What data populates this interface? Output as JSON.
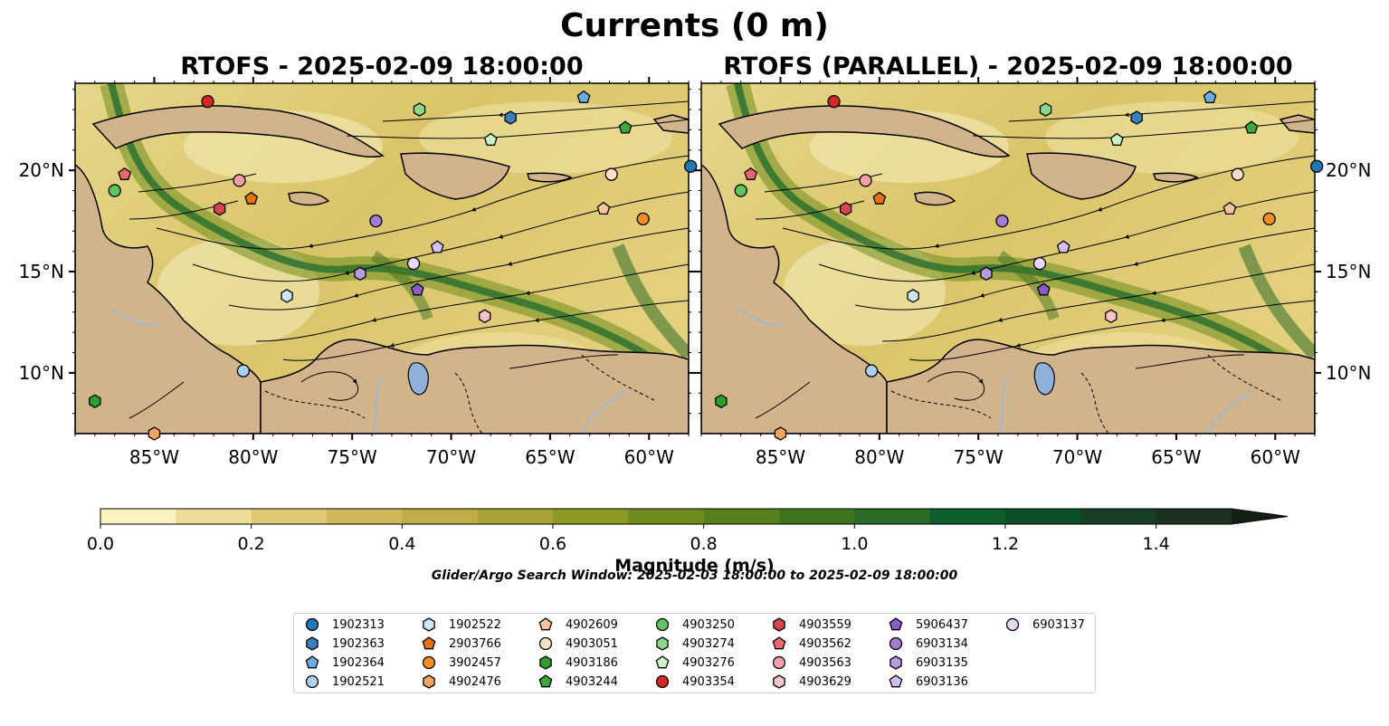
{
  "suptitle": "Currents (0 m)",
  "panels": [
    {
      "title": "RTOFS - 2025-02-09 18:00:00"
    },
    {
      "title": "RTOFS (PARALLEL) - 2025-02-09 18:00:00"
    }
  ],
  "map": {
    "lon_ticks": [
      "85°W",
      "80°W",
      "75°W",
      "70°W",
      "65°W",
      "60°W"
    ],
    "lat_ticks_left": [
      "20°N",
      "15°N",
      "10°N"
    ],
    "lat_ticks_right": [
      "20°N",
      "15°N",
      "10°N"
    ],
    "extent": {
      "lon": [
        -89,
        -58
      ],
      "lat": [
        7,
        24.3
      ]
    },
    "colors": {
      "land": "#d2b48c",
      "lake": "#8fb1d9",
      "river": "#9fb8d0",
      "coast": "#000000"
    }
  },
  "colorbar": {
    "label": "Magnitude (m/s)",
    "ticks": [
      "0.0",
      "0.2",
      "0.4",
      "0.6",
      "0.8",
      "1.0",
      "1.2",
      "1.4"
    ],
    "range": [
      0,
      1.5
    ],
    "extend": "max",
    "colors": [
      "#faf3c0",
      "#eedd98",
      "#e0c874",
      "#d0b858",
      "#bfae48",
      "#a6a336",
      "#8c9a24",
      "#6e8c1c",
      "#56801e",
      "#3f741f",
      "#2b6a27",
      "#0e5d2c",
      "#0b4e28",
      "#173f25",
      "#1d3120",
      "#152015"
    ]
  },
  "search_window": "Glider/Argo Search Window: 2025-02-03 18:00:00 to 2025-02-09 18:00:00",
  "floats": [
    {
      "id": "1902313",
      "marker": "circle",
      "color": "#1f77b4",
      "pos": [
        [
          -57.9,
          20.2
        ],
        [
          -57.9,
          20.2
        ]
      ]
    },
    {
      "id": "1902363",
      "marker": "hexagon",
      "color": "#3a7fc0",
      "pos": [
        [
          -67.0,
          22.6
        ],
        [
          -67.0,
          22.6
        ]
      ]
    },
    {
      "id": "1902364",
      "marker": "pentagon",
      "color": "#6aaee0",
      "pos": [
        [
          -63.3,
          23.6
        ],
        [
          -63.3,
          23.6
        ]
      ]
    },
    {
      "id": "1902521",
      "marker": "circle",
      "color": "#a9d0f5",
      "pos": [
        [
          -80.5,
          10.1
        ],
        [
          -80.4,
          10.1
        ]
      ]
    },
    {
      "id": "1902522",
      "marker": "hexagon",
      "color": "#cfe8fb",
      "pos": [
        [
          -78.3,
          13.8
        ],
        [
          -78.3,
          13.8
        ]
      ]
    },
    {
      "id": "2903766",
      "marker": "pentagon",
      "color": "#e5710e",
      "pos": [
        [
          -80.1,
          18.6
        ],
        [
          -80.0,
          18.6
        ]
      ]
    },
    {
      "id": "3902457",
      "marker": "circle",
      "color": "#f28c28",
      "pos": [
        [
          -60.3,
          17.6
        ],
        [
          -60.3,
          17.6
        ]
      ]
    },
    {
      "id": "4902476",
      "marker": "hexagon",
      "color": "#f6a55a",
      "pos": [
        [
          -85.0,
          7.0
        ],
        [
          -85.0,
          7.0
        ]
      ]
    },
    {
      "id": "4902609",
      "marker": "pentagon",
      "color": "#fbc49a",
      "pos": [
        [
          -62.3,
          18.1
        ],
        [
          -62.3,
          18.1
        ]
      ]
    },
    {
      "id": "4903051",
      "marker": "circle",
      "color": "#fde0c8",
      "pos": [
        [
          -61.9,
          19.8
        ],
        [
          -61.9,
          19.8
        ]
      ]
    },
    {
      "id": "4903186",
      "marker": "hexagon",
      "color": "#2ca02c",
      "pos": [
        [
          -88.0,
          8.6
        ],
        [
          -88.0,
          8.6
        ]
      ]
    },
    {
      "id": "4903244",
      "marker": "pentagon",
      "color": "#3aa83a",
      "pos": [
        [
          -61.2,
          22.1
        ],
        [
          -61.2,
          22.1
        ]
      ]
    },
    {
      "id": "4903250",
      "marker": "circle",
      "color": "#5fc35f",
      "pos": [
        [
          -87.0,
          19.0
        ],
        [
          -87.0,
          19.0
        ]
      ]
    },
    {
      "id": "4903274",
      "marker": "hexagon",
      "color": "#8bd88b",
      "pos": [
        [
          -71.6,
          23.0
        ],
        [
          -71.6,
          23.0
        ]
      ]
    },
    {
      "id": "4903276",
      "marker": "pentagon",
      "color": "#c8f5c2",
      "pos": [
        [
          -68.0,
          21.5
        ],
        [
          -68.0,
          21.5
        ]
      ]
    },
    {
      "id": "4903354",
      "marker": "circle",
      "color": "#d62728",
      "pos": [
        [
          -82.3,
          23.4
        ],
        [
          -82.3,
          23.4
        ]
      ]
    },
    {
      "id": "4903559",
      "marker": "hexagon",
      "color": "#d64550",
      "pos": [
        [
          -81.7,
          18.1
        ],
        [
          -81.7,
          18.1
        ]
      ]
    },
    {
      "id": "4903562",
      "marker": "pentagon",
      "color": "#e8686f",
      "pos": [
        [
          -86.5,
          19.8
        ],
        [
          -86.5,
          19.8
        ]
      ]
    },
    {
      "id": "4903563",
      "marker": "circle",
      "color": "#f0a0a8",
      "pos": [
        [
          -80.7,
          19.5
        ],
        [
          -80.7,
          19.5
        ]
      ]
    },
    {
      "id": "4903629",
      "marker": "hexagon",
      "color": "#f8c4c8",
      "pos": [
        [
          -68.3,
          12.8
        ],
        [
          -68.3,
          12.8
        ]
      ]
    },
    {
      "id": "5906437",
      "marker": "pentagon",
      "color": "#8a5cc4",
      "pos": [
        [
          -71.7,
          14.1
        ],
        [
          -71.7,
          14.1
        ]
      ]
    },
    {
      "id": "6903134",
      "marker": "circle",
      "color": "#a07ed2",
      "pos": [
        [
          -73.8,
          17.5
        ],
        [
          -73.8,
          17.5
        ]
      ]
    },
    {
      "id": "6903135",
      "marker": "hexagon",
      "color": "#b89ae0",
      "pos": [
        [
          -74.6,
          14.9
        ],
        [
          -74.6,
          14.9
        ]
      ]
    },
    {
      "id": "6903136",
      "marker": "pentagon",
      "color": "#d6bff0",
      "pos": [
        [
          -70.7,
          16.2
        ],
        [
          -70.7,
          16.2
        ]
      ]
    },
    {
      "id": "6903137",
      "marker": "circle",
      "color": "#e7d6f8",
      "pos": [
        [
          -71.9,
          15.4
        ],
        [
          -71.9,
          15.4
        ]
      ]
    }
  ]
}
